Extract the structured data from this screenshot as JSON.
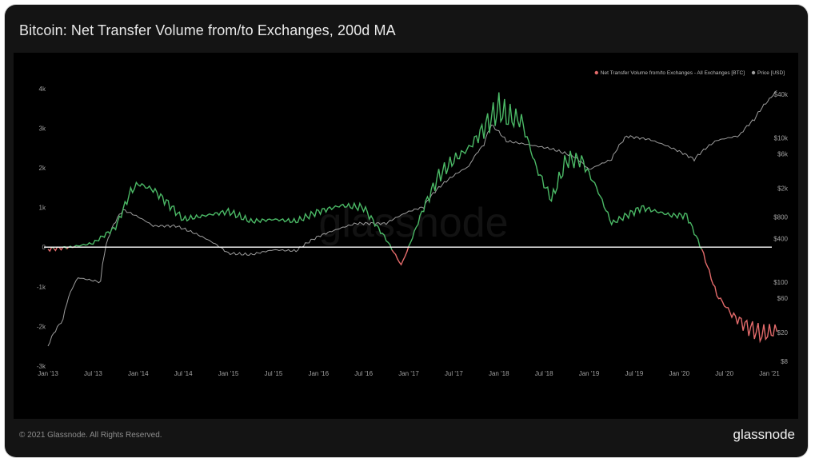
{
  "title": "Bitcoin: Net Transfer Volume from/to Exchanges, 200d MA",
  "footer": {
    "copyright": "© 2021 Glassnode. All Rights Reserved.",
    "brand": "glassnode"
  },
  "watermark": "glassnode",
  "colors": {
    "positive": "#4bb966",
    "negative": "#e46b6b",
    "price": "#b9b9b9",
    "zero_line": "#ffffff",
    "background": "#000000",
    "card": "#141414"
  },
  "chart_data": {
    "type": "line",
    "title": "Bitcoin: Net Transfer Volume from/to Exchanges, 200d MA",
    "legend": [
      {
        "name": "Net Transfer Volume from/to Exchanges - All Exchanges [BTC]",
        "color": "#e46b6b"
      },
      {
        "name": "Price [USD]",
        "color": "#9e9e9e"
      }
    ],
    "legend_position": "top-right",
    "x_ticks": [
      "Jan '13",
      "Jul '13",
      "Jan '14",
      "Jul '14",
      "Jan '15",
      "Jul '15",
      "Jan '16",
      "Jul '16",
      "Jan '17",
      "Jul '17",
      "Jan '18",
      "Jul '18",
      "Jan '19",
      "Jul '19",
      "Jan '20",
      "Jul '20",
      "Jan '21"
    ],
    "y_left": {
      "ticks": [
        4000,
        3000,
        2000,
        1000,
        0,
        -1000,
        -2000,
        -3000
      ],
      "tick_labels": [
        "4k",
        "3k",
        "2k",
        "1k",
        "0",
        "-1k",
        "-2k",
        "-3k"
      ],
      "range": [
        -3000,
        4500
      ]
    },
    "y_right": {
      "scale": "log",
      "ticks": [
        40000,
        10000,
        6000,
        2000,
        800,
        400,
        100,
        60,
        20,
        8
      ],
      "tick_labels": [
        "$40k",
        "$10k",
        "$6k",
        "$2k",
        "$800",
        "$400",
        "$100",
        "$60",
        "$20",
        "$8"
      ]
    },
    "grid": false,
    "series": [
      {
        "name": "Net Transfer Volume from/to Exchanges - All Exchanges [BTC]",
        "axis": "left",
        "x": [
          "2013-01",
          "2013-04",
          "2013-07",
          "2013-10",
          "2013-12",
          "2014-01",
          "2014-03",
          "2014-05",
          "2014-07",
          "2014-10",
          "2015-01",
          "2015-04",
          "2015-07",
          "2015-10",
          "2016-01",
          "2016-04",
          "2016-07",
          "2016-10",
          "2016-12",
          "2017-01",
          "2017-03",
          "2017-05",
          "2017-07",
          "2017-09",
          "2017-11",
          "2018-01",
          "2018-02",
          "2018-04",
          "2018-06",
          "2018-08",
          "2018-10",
          "2018-12",
          "2019-02",
          "2019-04",
          "2019-06",
          "2019-08",
          "2019-10",
          "2019-12",
          "2020-02",
          "2020-04",
          "2020-06",
          "2020-08",
          "2020-10",
          "2020-12",
          "2021-02"
        ],
        "values": [
          -50,
          0,
          100,
          500,
          1400,
          1600,
          1450,
          1100,
          700,
          800,
          900,
          650,
          700,
          650,
          900,
          1050,
          1000,
          200,
          -450,
          0,
          1000,
          1800,
          2200,
          2500,
          3000,
          3500,
          3300,
          3200,
          2000,
          1200,
          2200,
          2200,
          1500,
          600,
          800,
          1000,
          900,
          800,
          800,
          -50,
          -1200,
          -1700,
          -2000,
          -2200,
          -2100
        ]
      },
      {
        "name": "Price [USD]",
        "axis": "right",
        "x": [
          "2013-01",
          "2013-03",
          "2013-05",
          "2013-08",
          "2013-11",
          "2013-12",
          "2014-03",
          "2014-06",
          "2014-09",
          "2015-01",
          "2015-04",
          "2015-07",
          "2015-10",
          "2016-01",
          "2016-06",
          "2016-10",
          "2017-01",
          "2017-03",
          "2017-06",
          "2017-09",
          "2017-11",
          "2017-12",
          "2018-02",
          "2018-05",
          "2018-08",
          "2018-11",
          "2019-01",
          "2019-04",
          "2019-06",
          "2019-09",
          "2019-12",
          "2020-03",
          "2020-06",
          "2020-09",
          "2020-11",
          "2021-01",
          "2021-02"
        ],
        "values": [
          13,
          30,
          115,
          100,
          1000,
          900,
          600,
          600,
          450,
          250,
          240,
          280,
          270,
          430,
          650,
          650,
          950,
          1100,
          2500,
          4000,
          8000,
          15000,
          9000,
          8000,
          7000,
          5500,
          3600,
          5000,
          10500,
          9500,
          7200,
          5000,
          9200,
          10700,
          18000,
          34000,
          45000
        ]
      }
    ]
  }
}
